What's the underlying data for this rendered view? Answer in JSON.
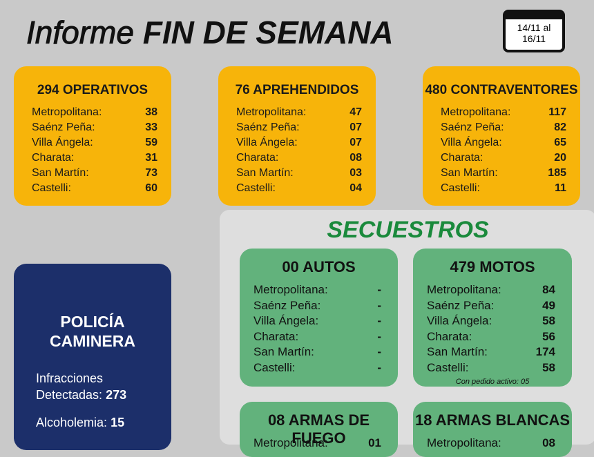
{
  "header": {
    "title_prefix": "Informe",
    "title_main": "FIN DE SEMANA",
    "dates": [
      "14/11 al",
      "16/11"
    ]
  },
  "cards": [
    {
      "title": "294 OPERATIVOS",
      "rows": [
        [
          "Metropolitana:",
          "38"
        ],
        [
          "Saénz Peña:",
          "33"
        ],
        [
          "Villa Ángela:",
          "59"
        ],
        [
          "Charata:",
          "31"
        ],
        [
          "San Martín:",
          "73"
        ],
        [
          "Castelli:",
          "60"
        ]
      ]
    },
    {
      "title": "76 APREHENDIDOS",
      "rows": [
        [
          "Metropolitana:",
          "47"
        ],
        [
          "Saénz Peña:",
          "07"
        ],
        [
          "Villa Ángela:",
          "07"
        ],
        [
          "Charata:",
          "08"
        ],
        [
          "San Martín:",
          "03"
        ],
        [
          "Castelli:",
          "04"
        ]
      ]
    },
    {
      "title": "480 CONTRAVENTORES",
      "rows": [
        [
          "Metropolitana:",
          "117"
        ],
        [
          "Saénz Peña:",
          "82"
        ],
        [
          "Villa Ángela:",
          "65"
        ],
        [
          "Charata:",
          "20"
        ],
        [
          "San Martín:",
          "185"
        ],
        [
          "Castelli:",
          "11"
        ]
      ]
    }
  ],
  "secuestros": {
    "title": "SECUESTROS",
    "cards": [
      {
        "title": "00 AUTOS",
        "rows": [
          [
            "Metropolitana:",
            "-"
          ],
          [
            "Saénz Peña:",
            "-"
          ],
          [
            "Villa Ángela:",
            "-"
          ],
          [
            "Charata:",
            "-"
          ],
          [
            "San Martín:",
            "-"
          ],
          [
            "Castelli:",
            "-"
          ]
        ]
      },
      {
        "title": "479 MOTOS",
        "rows": [
          [
            "Metropolitana:",
            "84"
          ],
          [
            "Saénz Peña:",
            "49"
          ],
          [
            "Villa Ángela:",
            "58"
          ],
          [
            "Charata:",
            "56"
          ],
          [
            "San Martín:",
            "174"
          ],
          [
            "Castelli:",
            "58"
          ]
        ],
        "note": "Con pedido activo: 05"
      },
      {
        "title": "08 ARMAS DE FUEGO",
        "rows": [
          [
            "Metropolitana:",
            "01"
          ]
        ]
      },
      {
        "title": "18 ARMAS BLANCAS",
        "rows": [
          [
            "Metropolitana:",
            "08"
          ]
        ]
      }
    ]
  },
  "caminera": {
    "title": [
      "POLICÍA",
      "CAMINERA"
    ],
    "rows": [
      {
        "label": [
          "Infracciones",
          "Detectadas:"
        ],
        "value": "273"
      },
      {
        "label": [
          "Alcoholemia:"
        ],
        "value": "15"
      }
    ]
  }
}
